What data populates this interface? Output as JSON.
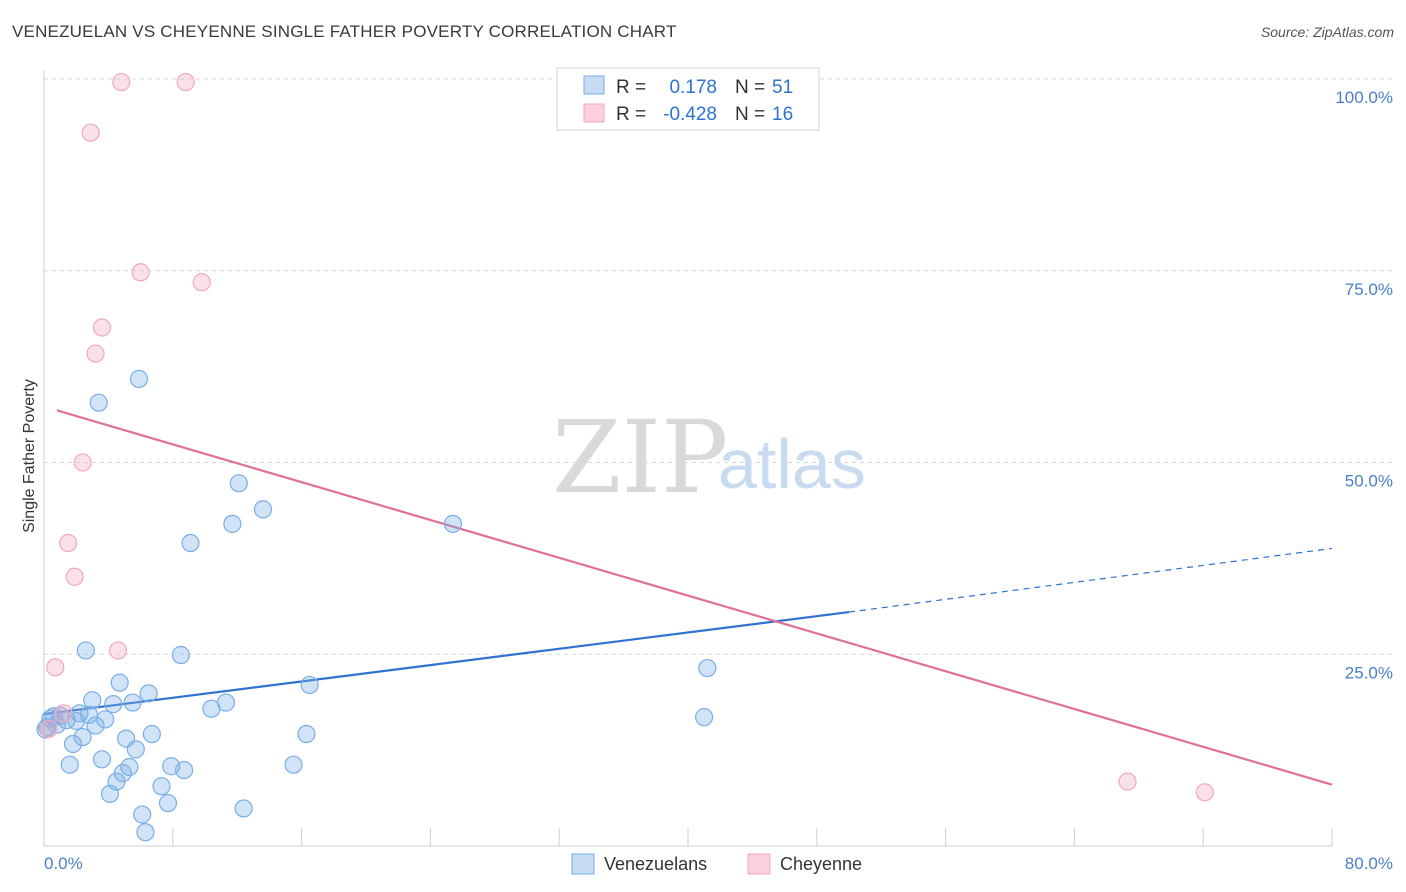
{
  "title": "VENEZUELAN VS CHEYENNE SINGLE FATHER POVERTY CORRELATION CHART",
  "source": "Source: ZipAtlas.com",
  "watermark": {
    "zip": "ZIP",
    "atlas": "atlas"
  },
  "colors": {
    "venezuelans": "#7aaee6",
    "venezuelans_line": "#2f72d0",
    "cheyenne": "#f0a8be",
    "cheyenne_line": "#e07098",
    "value_text": "#2f72d0",
    "grid": "#d8d8d8"
  },
  "chart_data": {
    "type": "scatter",
    "xlabel": "",
    "ylabel": "Single Father Poverty",
    "xlim": [
      0,
      80
    ],
    "ylim": [
      0,
      100
    ],
    "x_tick_labels": [
      "0.0%",
      "80.0%"
    ],
    "y_ticks": [
      25,
      50,
      75,
      100
    ],
    "y_tick_labels": [
      "25.0%",
      "50.0%",
      "75.0%",
      "100.0%"
    ],
    "grid": true,
    "legend_placement": "bottom-center",
    "stats": [
      {
        "r_label": "R =",
        "r": "0.178",
        "n_label": "N =",
        "n": "51"
      },
      {
        "r_label": "R =",
        "r": "-0.428",
        "n_label": "N =",
        "n": "16"
      }
    ],
    "series": [
      {
        "name": "Venezuelans",
        "points": [
          [
            0.2,
            15.5
          ],
          [
            0.4,
            16.6
          ],
          [
            0.6,
            16.9
          ],
          [
            0.8,
            15.8
          ],
          [
            1.0,
            17.0
          ],
          [
            1.4,
            16.4
          ],
          [
            1.6,
            10.6
          ],
          [
            1.8,
            13.3
          ],
          [
            2.0,
            16.3
          ],
          [
            2.2,
            17.3
          ],
          [
            2.4,
            14.2
          ],
          [
            2.6,
            25.5
          ],
          [
            2.8,
            17.1
          ],
          [
            3.0,
            19.0
          ],
          [
            3.2,
            15.7
          ],
          [
            3.4,
            57.8
          ],
          [
            3.6,
            11.3
          ],
          [
            3.8,
            16.5
          ],
          [
            4.1,
            6.8
          ],
          [
            4.3,
            18.5
          ],
          [
            4.5,
            8.4
          ],
          [
            4.7,
            21.3
          ],
          [
            4.9,
            9.5
          ],
          [
            5.1,
            14.0
          ],
          [
            5.3,
            10.3
          ],
          [
            5.5,
            18.7
          ],
          [
            5.7,
            12.6
          ],
          [
            5.9,
            60.9
          ],
          [
            6.1,
            4.1
          ],
          [
            6.3,
            1.8
          ],
          [
            6.5,
            19.9
          ],
          [
            6.7,
            14.6
          ],
          [
            7.3,
            7.8
          ],
          [
            7.7,
            5.6
          ],
          [
            7.9,
            10.4
          ],
          [
            8.5,
            24.9
          ],
          [
            8.7,
            9.9
          ],
          [
            9.1,
            39.5
          ],
          [
            10.4,
            17.9
          ],
          [
            11.3,
            18.7
          ],
          [
            11.7,
            42.0
          ],
          [
            12.1,
            47.3
          ],
          [
            12.4,
            4.9
          ],
          [
            13.6,
            43.9
          ],
          [
            15.5,
            10.6
          ],
          [
            16.3,
            14.6
          ],
          [
            16.5,
            21.0
          ],
          [
            25.4,
            42.0
          ],
          [
            41.0,
            16.8
          ],
          [
            41.2,
            23.2
          ],
          [
            0.1,
            15.2
          ]
        ],
        "trend": {
          "x0": 0,
          "y0": 17.2,
          "x1": 50,
          "y1": 30.5,
          "x_dash_end": 80,
          "y_dash_end": 38.8
        }
      },
      {
        "name": "Cheyenne",
        "points": [
          [
            0.3,
            15.3
          ],
          [
            0.7,
            23.3
          ],
          [
            1.2,
            17.3
          ],
          [
            1.5,
            39.5
          ],
          [
            1.9,
            35.1
          ],
          [
            2.4,
            50.0
          ],
          [
            2.9,
            93.0
          ],
          [
            3.2,
            64.2
          ],
          [
            3.6,
            67.6
          ],
          [
            4.6,
            25.5
          ],
          [
            4.8,
            99.6
          ],
          [
            6.0,
            74.8
          ],
          [
            8.8,
            99.6
          ],
          [
            9.8,
            73.5
          ],
          [
            67.3,
            8.4
          ],
          [
            72.1,
            7.0
          ]
        ],
        "trend": {
          "x0": 0.8,
          "y0": 56.8,
          "x1": 80,
          "y1": 8.0
        }
      }
    ]
  },
  "legend": [
    {
      "label": "Venezuelans"
    },
    {
      "label": "Cheyenne"
    }
  ]
}
